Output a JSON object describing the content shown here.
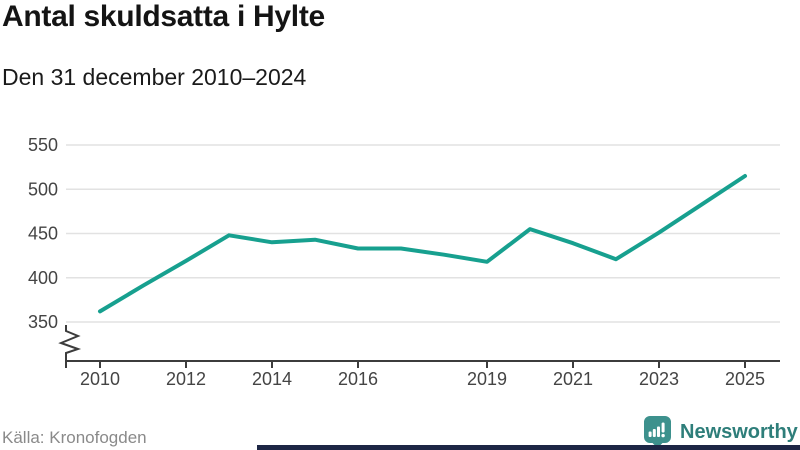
{
  "header": {
    "title": "Antal skuldsatta i Hylte",
    "subtitle": "Den 31 december 2010–2024"
  },
  "footer": {
    "source": "Källa: Kronofogden",
    "brand": "Newsworthy"
  },
  "colors": {
    "line": "#17a08f",
    "logo_teal": "#3d918d",
    "brand_text": "#2e7e7a",
    "grid": "#e2e2e2",
    "axis": "#3c3c3c",
    "tick_label": "#444444",
    "source_text": "#8a8a8a",
    "bottom_bar": "#1d2645",
    "title_text": "#141414"
  },
  "chart_data": {
    "type": "line",
    "title": "Antal skuldsatta i Hylte",
    "subtitle": "Den 31 december 2010–2024",
    "source": "Källa: Kronofogden",
    "x": [
      2010,
      2011,
      2012,
      2013,
      2014,
      2015,
      2016,
      2017,
      2018,
      2019,
      2020,
      2021,
      2022,
      2023,
      2024,
      2025
    ],
    "values": [
      362,
      391,
      419,
      448,
      440,
      443,
      433,
      433,
      426,
      418,
      455,
      439,
      421,
      451,
      483,
      515
    ],
    "x_tick_labels": [
      "2010",
      "2012",
      "2014",
      "2016",
      "2019",
      "2021",
      "2023",
      "2025"
    ],
    "y_ticks": [
      350,
      400,
      450,
      500,
      550
    ],
    "ylim": [
      350,
      550
    ],
    "axis_break": true,
    "grid": "horizontal",
    "legend": "none",
    "line_color": "#17a08f"
  }
}
